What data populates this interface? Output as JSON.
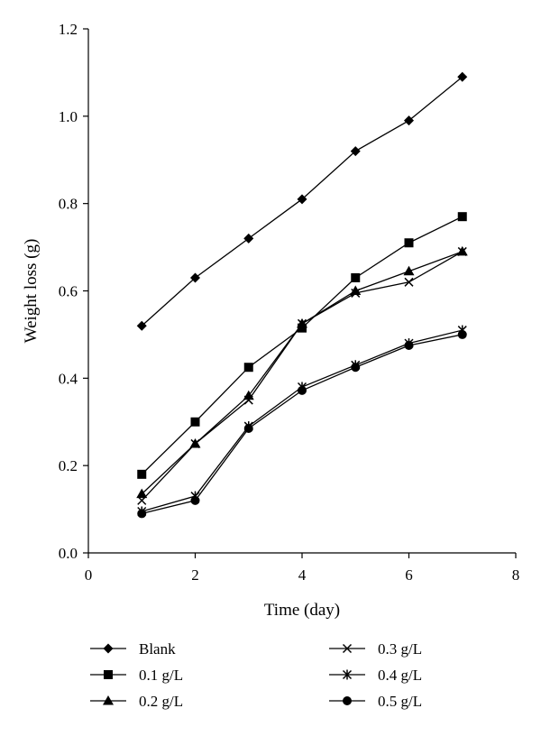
{
  "chart_data": {
    "type": "line",
    "xlabel": "Time (day)",
    "ylabel": "Weight loss (g)",
    "xlim": [
      0,
      8
    ],
    "ylim": [
      0,
      1.2
    ],
    "xticks": [
      "0",
      "2",
      "4",
      "6",
      "8"
    ],
    "yticks": [
      "0.0",
      "0.2",
      "0.4",
      "0.6",
      "0.8",
      "1.0",
      "1.2"
    ],
    "grid": false,
    "legend_position": "bottom",
    "x": [
      1,
      2,
      3,
      4,
      5,
      6,
      7
    ],
    "series": [
      {
        "name": "Blank",
        "marker": "diamond",
        "values": [
          0.52,
          0.63,
          0.72,
          0.81,
          0.92,
          0.99,
          1.09
        ]
      },
      {
        "name": "0.1 g/L",
        "marker": "square",
        "values": [
          0.18,
          0.3,
          0.425,
          0.515,
          0.63,
          0.71,
          0.77
        ]
      },
      {
        "name": "0.2 g/L",
        "marker": "triangle",
        "values": [
          0.135,
          0.25,
          0.36,
          0.525,
          0.6,
          0.645,
          0.69
        ]
      },
      {
        "name": "0.3 g/L",
        "marker": "x",
        "values": [
          0.12,
          0.25,
          0.35,
          0.525,
          0.595,
          0.62,
          0.69
        ]
      },
      {
        "name": "0.4 g/L",
        "marker": "asterisk",
        "values": [
          0.095,
          0.13,
          0.29,
          0.38,
          0.43,
          0.48,
          0.51
        ]
      },
      {
        "name": "0.5 g/L",
        "marker": "circle",
        "values": [
          0.09,
          0.12,
          0.285,
          0.372,
          0.425,
          0.475,
          0.5
        ]
      }
    ]
  }
}
